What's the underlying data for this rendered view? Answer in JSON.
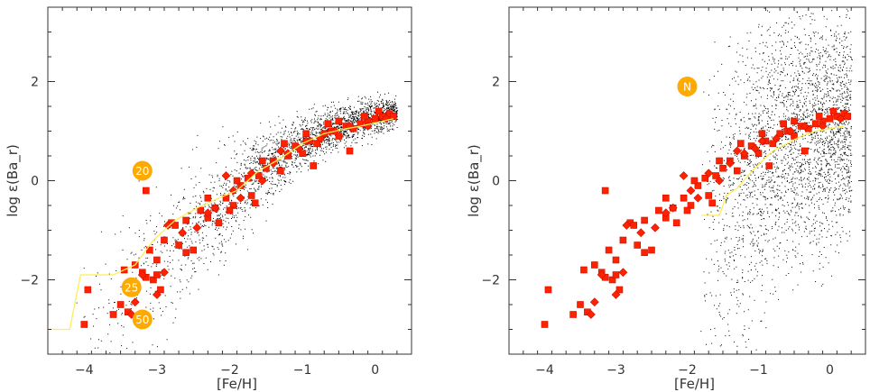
{
  "colors": {
    "frame": "#333333",
    "dots": "#000000",
    "markers": "#ff2200",
    "marker_edge": "#cc1100",
    "mean_line": "#ffee55",
    "badge": "#ffaa00",
    "badge_text": "#ffffff"
  },
  "chart_data": [
    {
      "type": "scatter",
      "title": "",
      "xlabel": "[Fe/H]",
      "ylabel": "log ε(Ba_r)",
      "xlim": [
        -4.5,
        0.5
      ],
      "ylim": [
        -3.5,
        3.5
      ],
      "grid": false,
      "x_ticks": [
        -4,
        -3,
        -2,
        -1,
        0
      ],
      "x_tick_labels": [
        "−4",
        "−3",
        "−2",
        "−1",
        "0"
      ],
      "y_ticks": [
        -2,
        0,
        2
      ],
      "y_tick_labels": [
        "−2",
        "0",
        "2"
      ],
      "model_cloud": {
        "description_color": "black",
        "ridge": [
          [
            -4.2,
            -3.0
          ],
          [
            -3.5,
            -2.3
          ],
          [
            -3.0,
            -1.7
          ],
          [
            -2.5,
            -1.1
          ],
          [
            -2.0,
            -0.4
          ],
          [
            -1.5,
            0.3
          ],
          [
            -1.0,
            0.8
          ],
          [
            -0.5,
            1.1
          ],
          [
            0.0,
            1.3
          ],
          [
            0.3,
            1.4
          ]
        ],
        "scatter_width": [
          [
            -4.2,
            0.6
          ],
          [
            -3.0,
            0.7
          ],
          [
            -2.0,
            0.5
          ],
          [
            -1.0,
            0.25
          ],
          [
            0.3,
            0.15
          ]
        ]
      },
      "mean_line": [
        [
          -4.5,
          -3.0
        ],
        [
          -4.2,
          -3.0
        ],
        [
          -4.05,
          -1.9
        ],
        [
          -3.6,
          -1.9
        ],
        [
          -3.3,
          -1.7
        ],
        [
          -3.05,
          -1.2
        ],
        [
          -2.75,
          -0.8
        ],
        [
          -2.45,
          -0.55
        ],
        [
          -2.15,
          -0.35
        ],
        [
          -1.9,
          -0.2
        ],
        [
          -1.6,
          0.2
        ],
        [
          -1.3,
          0.45
        ],
        [
          -1.0,
          0.75
        ],
        [
          -0.7,
          0.95
        ],
        [
          -0.4,
          1.05
        ],
        [
          -0.2,
          1.1
        ],
        [
          0.1,
          1.2
        ],
        [
          0.25,
          1.25
        ]
      ],
      "badges": [
        {
          "label": "20",
          "x": -3.2,
          "y": 0.2
        },
        {
          "label": "25",
          "x": -3.35,
          "y": -2.15
        },
        {
          "label": "50",
          "x": -3.2,
          "y": -2.8
        }
      ]
    },
    {
      "type": "scatter",
      "title": "",
      "xlabel": "[Fe/H]",
      "ylabel": "log ε(Ba_r)",
      "xlim": [
        -4.5,
        0.5
      ],
      "ylim": [
        -3.5,
        3.5
      ],
      "grid": false,
      "x_ticks": [
        -4,
        -3,
        -2,
        -1,
        0
      ],
      "x_tick_labels": [
        "−4",
        "−3",
        "−2",
        "−1",
        "0"
      ],
      "y_ticks": [
        -2,
        0,
        2
      ],
      "y_tick_labels": [
        "−2",
        "0",
        "2"
      ],
      "model_cloud": {
        "description_color": "black",
        "ridge": [
          [
            -1.8,
            -1.0
          ],
          [
            -1.5,
            -0.6
          ],
          [
            -1.2,
            0.2
          ],
          [
            -1.0,
            0.5
          ],
          [
            -0.5,
            0.9
          ],
          [
            0.0,
            1.1
          ],
          [
            0.3,
            1.2
          ]
        ],
        "scatter_width": [
          [
            -1.8,
            1.8
          ],
          [
            -1.2,
            1.6
          ],
          [
            -0.5,
            1.3
          ],
          [
            0.3,
            1.0
          ]
        ]
      },
      "mean_line": [
        [
          -1.8,
          -0.7
        ],
        [
          -1.55,
          -0.7
        ],
        [
          -1.45,
          -0.3
        ],
        [
          -1.3,
          -0.15
        ],
        [
          -1.15,
          0.1
        ],
        [
          -0.95,
          0.4
        ],
        [
          -0.8,
          0.6
        ],
        [
          -0.6,
          0.75
        ],
        [
          -0.4,
          0.9
        ],
        [
          -0.2,
          1.0
        ],
        [
          0.0,
          1.05
        ],
        [
          0.2,
          1.1
        ]
      ],
      "badges": [
        {
          "label": "N",
          "x": -2.0,
          "y": 1.9
        }
      ]
    }
  ],
  "observations": {
    "squares": [
      [
        -4.0,
        -2.9
      ],
      [
        -3.95,
        -2.2
      ],
      [
        -3.6,
        -2.7
      ],
      [
        -3.5,
        -2.5
      ],
      [
        -3.4,
        -2.65
      ],
      [
        -3.45,
        -1.8
      ],
      [
        -3.3,
        -1.7
      ],
      [
        -3.2,
        -1.85
      ],
      [
        -3.15,
        -1.95
      ],
      [
        -3.05,
        -2.0
      ],
      [
        -3.0,
        -1.9
      ],
      [
        -2.95,
        -2.2
      ],
      [
        -3.1,
        -1.4
      ],
      [
        -3.0,
        -1.6
      ],
      [
        -2.9,
        -1.2
      ],
      [
        -2.8,
        -0.85
      ],
      [
        -2.75,
        -0.9
      ],
      [
        -2.7,
        -1.3
      ],
      [
        -2.6,
        -0.8
      ],
      [
        -2.5,
        -1.4
      ],
      [
        -2.4,
        -0.6
      ],
      [
        -2.3,
        -0.75
      ],
      [
        -2.2,
        -0.55
      ],
      [
        -2.15,
        -0.85
      ],
      [
        -2.05,
        -0.35
      ],
      [
        -1.95,
        -0.5
      ],
      [
        -1.85,
        -0.1
      ],
      [
        -1.75,
        0.05
      ],
      [
        -1.7,
        -0.3
      ],
      [
        -1.6,
        0.1
      ],
      [
        -1.5,
        0.25
      ],
      [
        -1.4,
        0.4
      ],
      [
        -1.3,
        0.2
      ],
      [
        -1.2,
        0.5
      ],
      [
        -1.1,
        0.7
      ],
      [
        -1.0,
        0.55
      ],
      [
        -0.9,
        0.8
      ],
      [
        -0.8,
        0.75
      ],
      [
        -0.7,
        0.95
      ],
      [
        -0.6,
        1.0
      ],
      [
        -0.5,
        0.9
      ],
      [
        -0.4,
        1.1
      ],
      [
        -0.3,
        1.05
      ],
      [
        -0.2,
        1.15
      ],
      [
        -0.1,
        1.2
      ],
      [
        0.0,
        1.25
      ],
      [
        0.1,
        1.3
      ],
      [
        0.2,
        1.35
      ],
      [
        0.25,
        1.3
      ],
      [
        -3.15,
        -0.2
      ],
      [
        -2.3,
        -0.35
      ],
      [
        -2.0,
        -0.6
      ],
      [
        -1.9,
        0.0
      ],
      [
        -1.55,
        0.4
      ],
      [
        -0.85,
        0.3
      ],
      [
        -0.5,
        1.2
      ],
      [
        -0.15,
        1.3
      ],
      [
        -1.25,
        0.75
      ],
      [
        -0.65,
        1.15
      ],
      [
        -2.6,
        -1.45
      ],
      [
        -1.65,
        -0.45
      ],
      [
        -0.95,
        0.95
      ],
      [
        -0.35,
        0.6
      ],
      [
        0.05,
        1.4
      ]
    ],
    "diamonds": [
      [
        -3.35,
        -2.7
      ],
      [
        -3.3,
        -2.45
      ],
      [
        -3.0,
        -2.3
      ],
      [
        -2.9,
        -1.85
      ],
      [
        -2.85,
        -0.9
      ],
      [
        -2.65,
        -1.05
      ],
      [
        -2.45,
        -0.95
      ],
      [
        -2.3,
        -0.65
      ],
      [
        -2.05,
        0.1
      ],
      [
        -1.95,
        -0.2
      ],
      [
        -1.85,
        -0.35
      ],
      [
        -1.7,
        0.15
      ],
      [
        -1.55,
        0.0
      ],
      [
        -1.4,
        0.35
      ],
      [
        -1.2,
        0.55
      ],
      [
        -1.05,
        0.65
      ],
      [
        -0.95,
        0.8
      ],
      [
        -0.75,
        0.85
      ],
      [
        -0.55,
        1.0
      ],
      [
        -0.35,
        1.1
      ],
      [
        -0.1,
        1.1
      ],
      [
        0.15,
        1.25
      ],
      [
        -3.2,
        -1.9
      ],
      [
        -2.2,
        -0.55
      ],
      [
        -1.3,
        0.6
      ]
    ]
  }
}
